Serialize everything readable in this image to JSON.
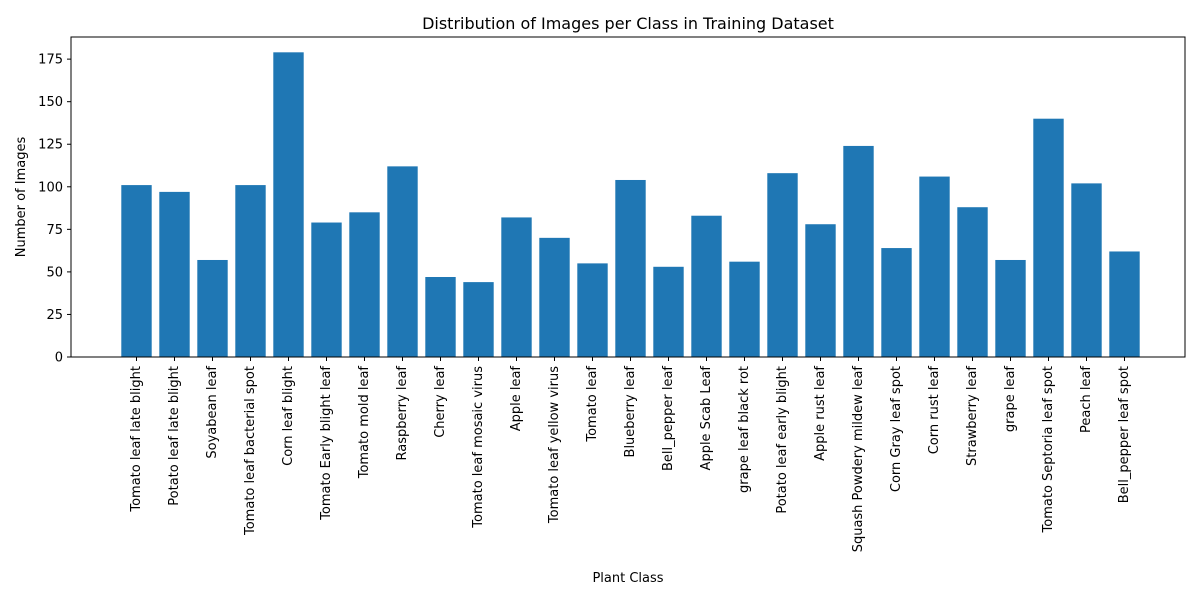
{
  "chart_data": {
    "type": "bar",
    "title": "Distribution of Images per Class in Training Dataset",
    "xlabel": "Plant Class",
    "ylabel": "Number of Images",
    "ylim": [
      0,
      188
    ],
    "yticks": [
      0,
      25,
      50,
      75,
      100,
      125,
      150,
      175
    ],
    "grid": false,
    "bar_color": "#1f77b4",
    "categories": [
      "Tomato leaf late blight",
      "Potato leaf late blight",
      "Soyabean leaf",
      "Tomato leaf bacterial spot",
      "Corn leaf blight",
      "Tomato Early blight leaf",
      "Tomato mold leaf",
      "Raspberry leaf",
      "Cherry leaf",
      "Tomato leaf mosaic virus",
      "Apple leaf",
      "Tomato leaf yellow virus",
      "Tomato leaf",
      "Blueberry leaf",
      "Bell_pepper leaf",
      "Apple Scab Leaf",
      "grape leaf black rot",
      "Potato leaf early blight",
      "Apple rust leaf",
      "Squash Powdery mildew leaf",
      "Corn Gray leaf spot",
      "Corn rust leaf",
      "Strawberry leaf",
      "grape leaf",
      "Tomato Septoria leaf spot",
      "Peach leaf",
      "Bell_pepper leaf spot"
    ],
    "values": [
      101,
      97,
      57,
      101,
      179,
      79,
      85,
      112,
      47,
      44,
      82,
      70,
      55,
      104,
      53,
      83,
      56,
      108,
      78,
      124,
      64,
      106,
      88,
      57,
      140,
      102,
      62
    ]
  }
}
